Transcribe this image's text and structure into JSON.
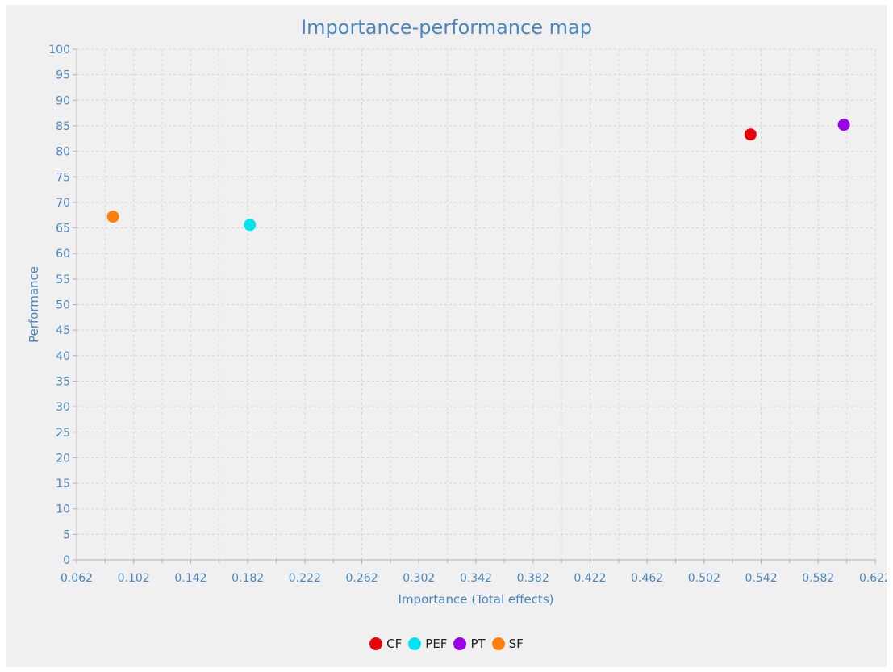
{
  "chart_data": {
    "type": "scatter",
    "title": "Importance-performance map",
    "xlabel": "Importance (Total effects)",
    "ylabel": "Performance",
    "xlim": [
      0.062,
      0.622
    ],
    "ylim": [
      0,
      100
    ],
    "x_ticks": [
      0.062,
      0.102,
      0.142,
      0.182,
      0.222,
      0.262,
      0.302,
      0.342,
      0.382,
      0.422,
      0.462,
      0.502,
      0.542,
      0.582,
      0.622
    ],
    "x_tick_labels": [
      "0.062",
      "0.102",
      "0.142",
      "0.182",
      "0.222",
      "0.262",
      "0.302",
      "0.342",
      "0.382",
      "0.422",
      "0.462",
      "0.502",
      "0.542",
      "0.582",
      "0.622"
    ],
    "y_ticks": [
      0,
      5,
      10,
      15,
      20,
      25,
      30,
      35,
      40,
      45,
      50,
      55,
      60,
      65,
      70,
      75,
      80,
      85,
      90,
      95,
      100
    ],
    "y_tick_labels": [
      "0",
      "5",
      "10",
      "15",
      "20",
      "25",
      "30",
      "35",
      "40",
      "45",
      "50",
      "55",
      "60",
      "65",
      "70",
      "75",
      "80",
      "85",
      "90",
      "95",
      "100"
    ],
    "grid": true,
    "legend_position": "bottom",
    "series": [
      {
        "name": "CF",
        "color": "#e8000b",
        "points": [
          {
            "x": 0.5345,
            "y": 83.3
          }
        ]
      },
      {
        "name": "PEF",
        "color": "#00e5ee",
        "points": [
          {
            "x": 0.1835,
            "y": 65.6
          }
        ]
      },
      {
        "name": "PT",
        "color": "#9b00e8",
        "points": [
          {
            "x": 0.6,
            "y": 85.2
          }
        ]
      },
      {
        "name": "SF",
        "color": "#ff7f0e",
        "points": [
          {
            "x": 0.0875,
            "y": 67.2
          }
        ]
      }
    ]
  }
}
